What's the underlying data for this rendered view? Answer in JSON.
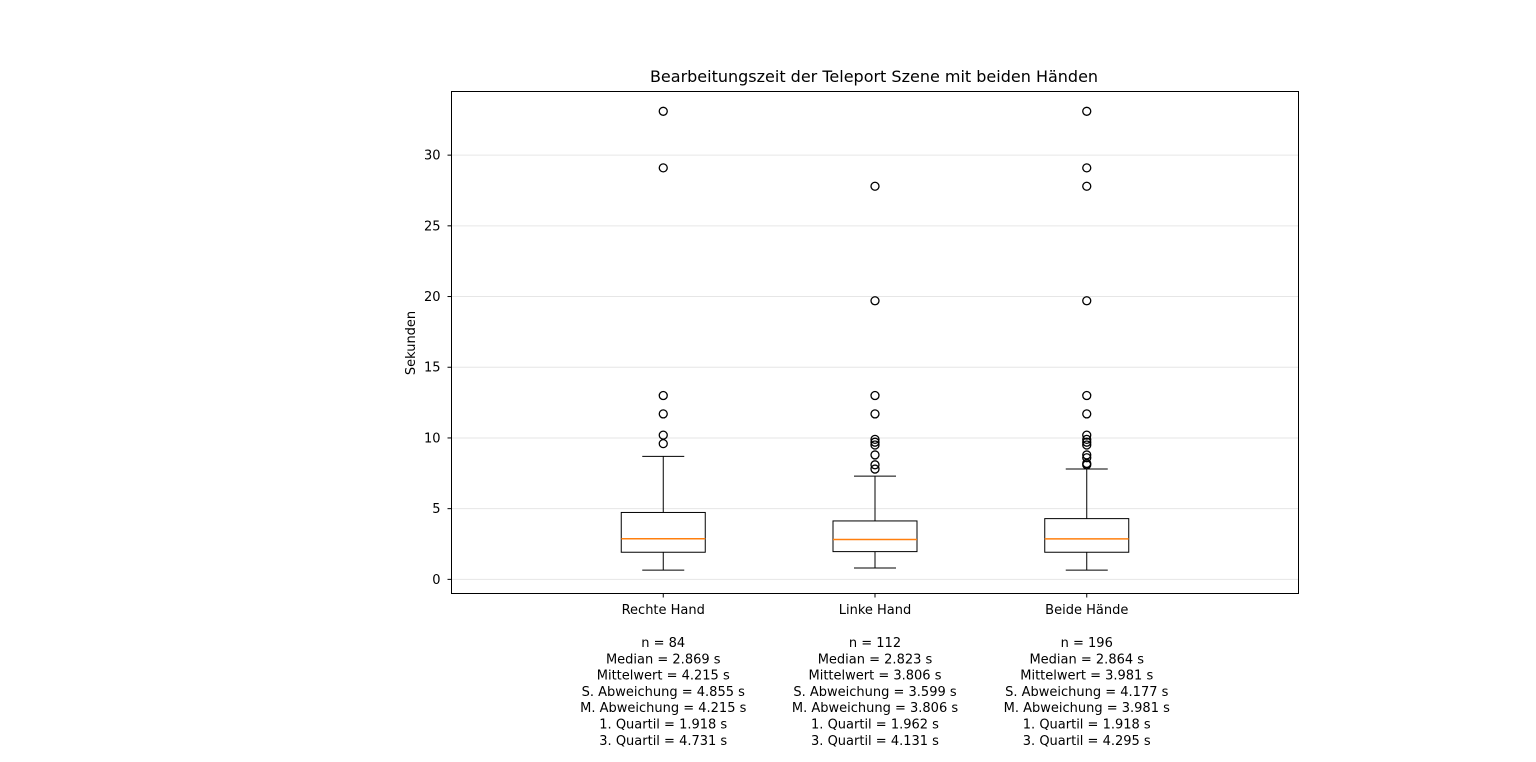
{
  "chart_data": {
    "type": "box",
    "title": "Bearbeitungszeit der Teleport Szene mit beiden Händen",
    "ylabel": "Sekunden",
    "xlabel": "",
    "ylim": [
      -1,
      34.5
    ],
    "yticks": [
      0,
      5,
      10,
      15,
      20,
      25,
      30
    ],
    "grid": "horizontal",
    "colors": {
      "box": "#000000",
      "median": "#ff7f0e",
      "grid": "#e6e6e6"
    },
    "groups": [
      {
        "label": "Rechte Hand",
        "whisker_low": 0.65,
        "q1": 1.918,
        "median": 2.869,
        "q3": 4.731,
        "whisker_high": 8.7,
        "outliers": [
          9.6,
          10.2,
          11.7,
          13.0,
          29.1,
          33.1
        ],
        "stats": [
          "n = 84",
          "Median = 2.869 s",
          "Mittelwert = 4.215 s",
          "S. Abweichung = 4.855 s",
          "M. Abweichung = 4.215 s",
          "1. Quartil = 1.918 s",
          "3. Quartil = 4.731 s"
        ]
      },
      {
        "label": "Linke Hand",
        "whisker_low": 0.8,
        "q1": 1.962,
        "median": 2.823,
        "q3": 4.131,
        "whisker_high": 7.3,
        "outliers": [
          7.8,
          8.1,
          8.8,
          9.5,
          9.7,
          9.9,
          11.7,
          13.0,
          19.7,
          27.8
        ],
        "stats": [
          "n = 112",
          "Median = 2.823 s",
          "Mittelwert = 3.806 s",
          "S. Abweichung = 3.599 s",
          "M. Abweichung = 3.806 s",
          "1. Quartil = 1.962 s",
          "3. Quartil = 4.131 s"
        ]
      },
      {
        "label": "Beide Hände",
        "whisker_low": 0.65,
        "q1": 1.918,
        "median": 2.864,
        "q3": 4.295,
        "whisker_high": 7.8,
        "outliers": [
          8.1,
          8.2,
          8.6,
          8.8,
          9.5,
          9.7,
          9.9,
          10.2,
          11.7,
          13.0,
          19.7,
          27.8,
          29.1,
          33.1
        ],
        "stats": [
          "n = 196",
          "Median = 2.864 s",
          "Mittelwert = 3.981 s",
          "S. Abweichung = 4.177 s",
          "M. Abweichung = 3.981 s",
          "1. Quartil = 1.918 s",
          "3. Quartil = 4.295 s"
        ]
      }
    ]
  }
}
